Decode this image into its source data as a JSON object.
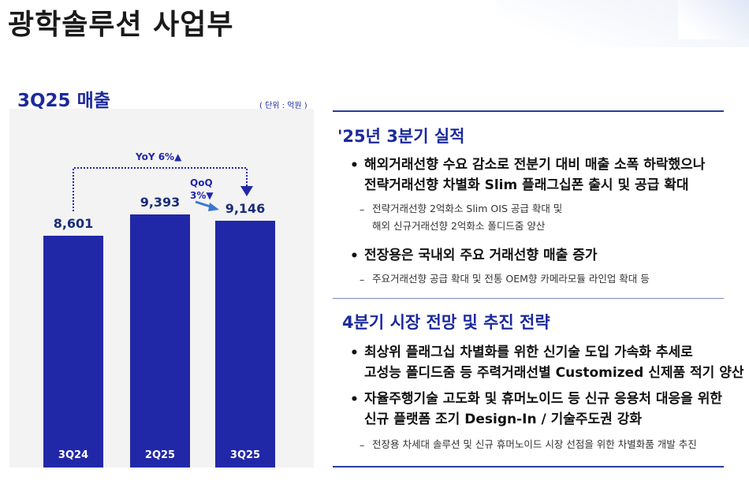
{
  "page": {
    "title": "광학솔루션 사업부"
  },
  "chart_data": {
    "type": "bar",
    "title": "3Q25 매출",
    "unit_note": "( 단위 : 억원 )",
    "categories": [
      "3Q24",
      "2Q25",
      "3Q25"
    ],
    "values": [
      8601,
      9393,
      9146
    ],
    "value_labels": [
      "8,601",
      "9,393",
      "9,146"
    ],
    "bar_color": "#2128a8",
    "panel_color": "#f3f3f3",
    "annotations": {
      "yoy": "YoY 6%▲",
      "qoq_line1": "QoQ",
      "qoq_line2": "3%▼"
    }
  },
  "results": {
    "heading": "'25년 3분기 실적",
    "bullets": [
      {
        "lines": [
          "해외거래선향 수요 감소로 전분기 대비 매출 소폭 하락했으나",
          "전략거래선향 차별화 Slim 플래그십폰 출시 및 공급 확대"
        ],
        "subs": [
          "전략거래선향 2억화소 Slim OIS 공급 확대 및",
          "해외 신규거래선향 2억화소 폴디드줌 양산"
        ]
      },
      {
        "lines": [
          "전장용은 국내외 주요 거래선향 매출 증가"
        ],
        "subs": [
          "주요거래선향 공급 확대 및 전통 OEM향 카메라모듈 라인업 확대 등"
        ]
      }
    ]
  },
  "outlook": {
    "heading": "4분기 시장 전망 및 추진 전략",
    "bullets": [
      {
        "lines": [
          "최상위 플래그십 차별화를 위한 신기술 도입 가속화 추세로",
          "고성능 폴디드줌 등 주력거래선별 Customized 신제품 적기 양산"
        ]
      },
      {
        "lines": [
          "자율주행기술 고도화 및 휴머노이드 등 신규 응용처 대응을 위한",
          "신규 플랫폼 조기 Design-In / 기술주도권 강화"
        ],
        "subs": [
          "전장용 차세대 솔루션 및 신규 휴머노이드 시장 선점을 위한 차별화품 개발 추진"
        ]
      }
    ]
  }
}
